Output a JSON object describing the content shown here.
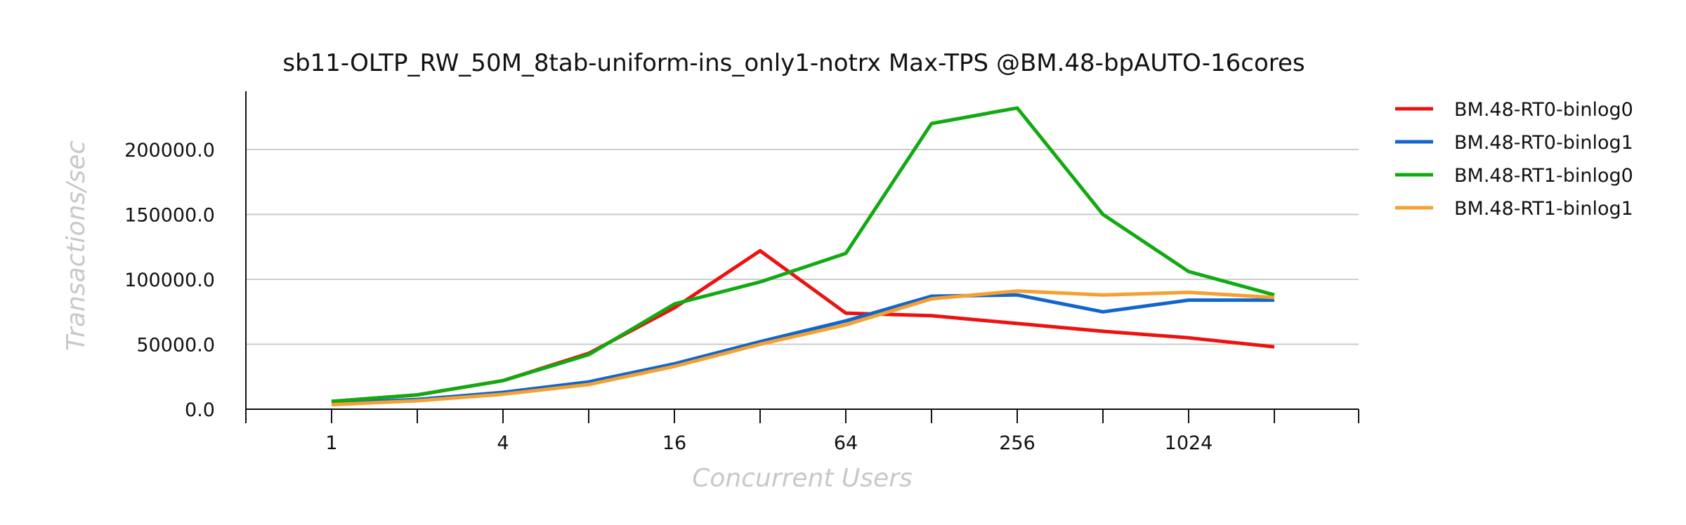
{
  "chart_data": {
    "type": "line",
    "title": "sb11-OLTP_RW_50M_8tab-uniform-ins_only1-notrx Max-TPS @BM.48-bpAUTO-16cores",
    "xlabel": "Concurrent Users",
    "ylabel": "Transactions/sec",
    "x": [
      1,
      2,
      4,
      8,
      16,
      32,
      64,
      128,
      256,
      512,
      1024,
      2048
    ],
    "x_scale": "log2",
    "x_tick_labels": [
      "1",
      "4",
      "16",
      "64",
      "256",
      "1024"
    ],
    "x_tick_values": [
      1,
      4,
      16,
      64,
      256,
      1024
    ],
    "ylim": [
      0,
      245000
    ],
    "y_ticks": [
      0,
      50000,
      100000,
      150000,
      200000
    ],
    "y_tick_labels": [
      "0.0",
      "50000.0",
      "100000.0",
      "150000.0",
      "200000.0"
    ],
    "grid": "horizontal",
    "legend_position": "right",
    "series": [
      {
        "name": "BM.48-RT0-binlog0",
        "color": "#ee1111",
        "values": [
          6000,
          11000,
          22000,
          43000,
          78000,
          122000,
          74000,
          72000,
          66000,
          60000,
          55000,
          48000
        ]
      },
      {
        "name": "BM.48-RT0-binlog1",
        "color": "#1166cc",
        "values": [
          4500,
          7500,
          13000,
          21000,
          35000,
          52000,
          68000,
          87000,
          88000,
          75000,
          84000,
          84000
        ]
      },
      {
        "name": "BM.48-RT1-binlog0",
        "color": "#11aa11",
        "values": [
          6000,
          11000,
          22000,
          42000,
          81000,
          98000,
          120000,
          220000,
          232000,
          150000,
          106000,
          88000
        ]
      },
      {
        "name": "BM.48-RT1-binlog1",
        "color": "#f5a030",
        "values": [
          3500,
          6500,
          11500,
          19000,
          33000,
          50000,
          65000,
          85000,
          91000,
          88000,
          90000,
          86000
        ]
      }
    ]
  }
}
